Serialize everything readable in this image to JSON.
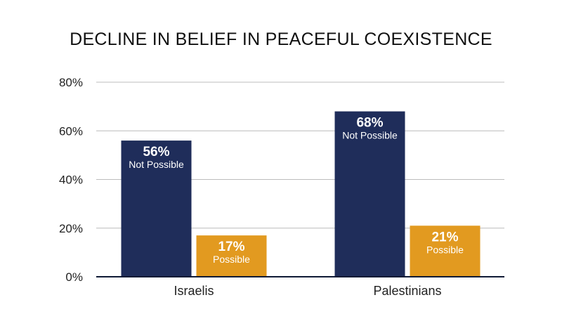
{
  "chart_data": {
    "type": "bar",
    "title": "DECLINE IN BELIEF IN PEACEFUL COEXISTENCE",
    "xlabel": "",
    "ylabel": "",
    "ylim": [
      0,
      80
    ],
    "yticks": [
      "0%",
      "20%",
      "40%",
      "60%",
      "80%"
    ],
    "ytick_values": [
      0,
      20,
      40,
      60,
      80
    ],
    "categories": [
      "Israelis",
      "Palestinians"
    ],
    "grid": true,
    "series": [
      {
        "color": "#1f2d5a",
        "values": [
          56,
          68
        ],
        "value_labels": [
          "56%",
          "68%"
        ],
        "sub_labels": [
          "Not Possible",
          "Not Possible"
        ]
      },
      {
        "color": "#e29a20",
        "values": [
          17,
          21
        ],
        "value_labels": [
          "17%",
          "21%"
        ],
        "sub_labels": [
          "Possible",
          "Possible"
        ]
      }
    ]
  }
}
